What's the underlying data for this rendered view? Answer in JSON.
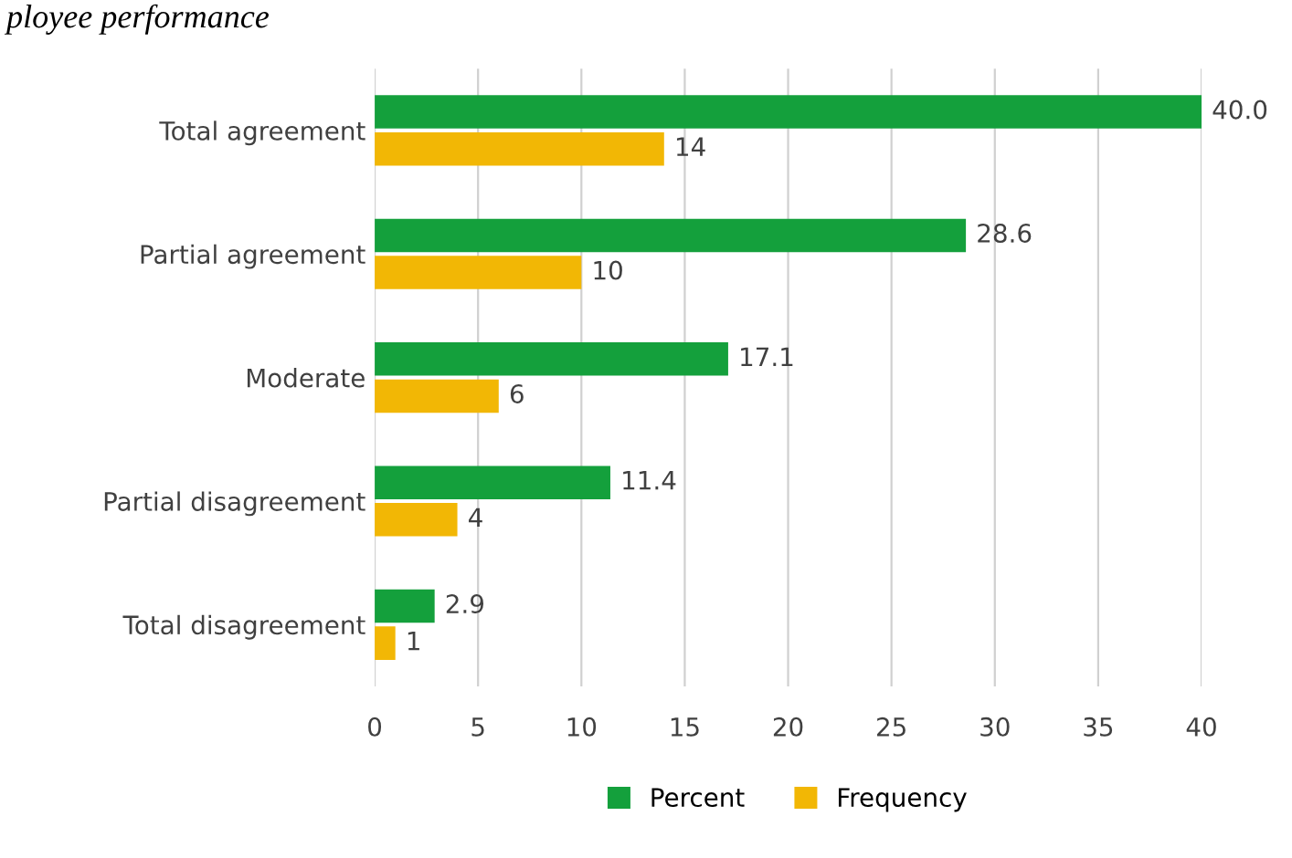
{
  "chart_data": {
    "type": "bar",
    "orientation": "horizontal",
    "title": "ployee performance",
    "categories": [
      "Total agreement",
      "Partial agreement",
      "Moderate",
      "Partial disagreement",
      "Total disagreement"
    ],
    "series": [
      {
        "name": "Percent",
        "color": "#14a03c",
        "values": [
          40.0,
          28.6,
          17.1,
          11.4,
          2.9
        ],
        "value_labels": [
          "40.0",
          "28.6",
          "17.1",
          "11.4",
          "2.9"
        ]
      },
      {
        "name": "Frequency",
        "color": "#f2b705",
        "values": [
          14,
          10,
          6,
          4,
          1
        ],
        "value_labels": [
          "14",
          "10",
          "6",
          "4",
          "1"
        ]
      }
    ],
    "xlim": [
      0,
      40
    ],
    "xticks": [
      0,
      5,
      10,
      15,
      20,
      25,
      30,
      35,
      40
    ],
    "grid": "x",
    "legend": "bottom"
  }
}
